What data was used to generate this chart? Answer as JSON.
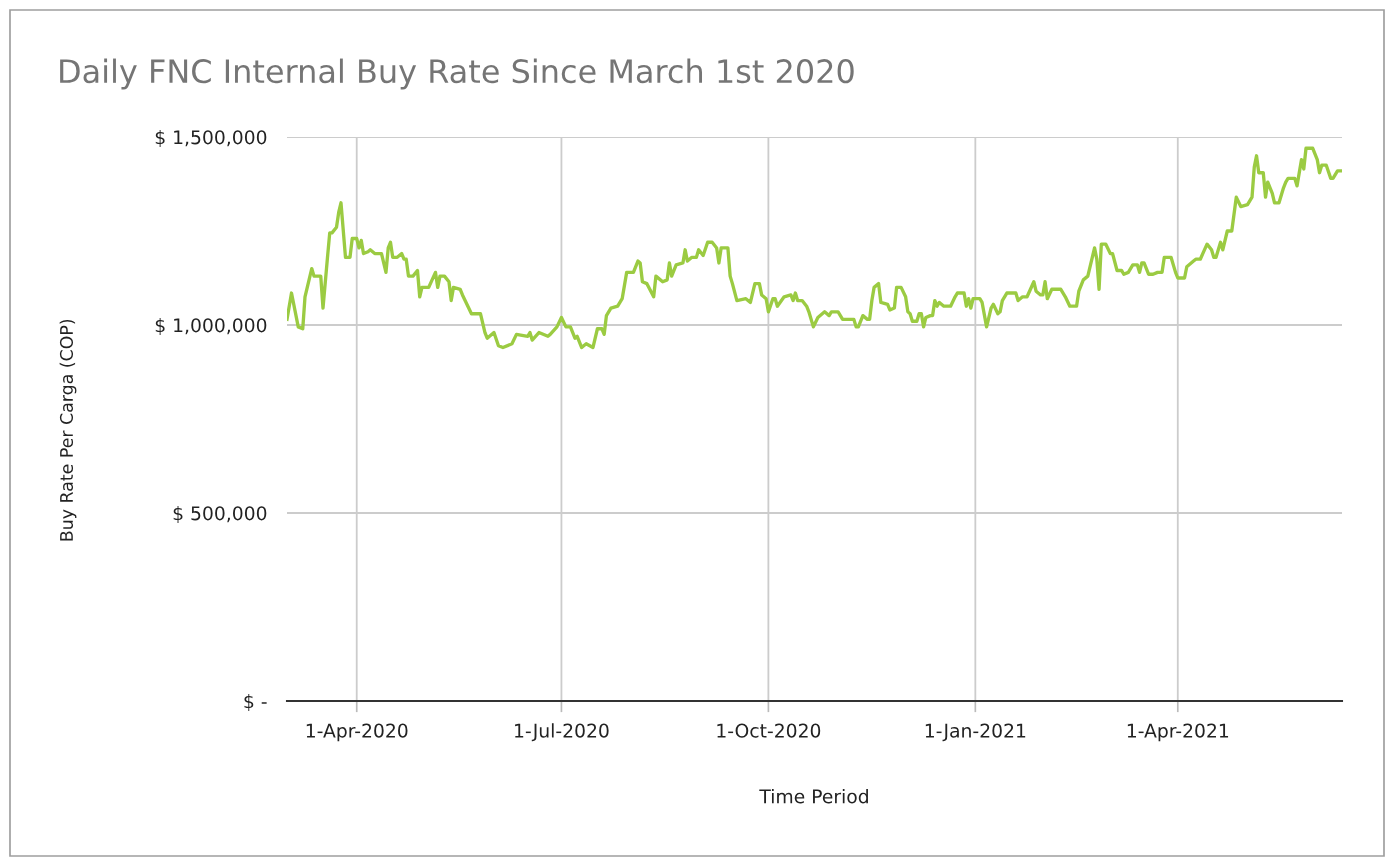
{
  "chart_data": {
    "type": "line",
    "title": "Daily FNC Internal Buy Rate Since March 1st 2020",
    "xlabel": "Time Period",
    "ylabel": "Buy Rate Per Carga (COP)",
    "x": [
      "2020-03-01",
      "2020-03-03",
      "2020-03-06",
      "2020-03-08",
      "2020-03-09",
      "2020-03-12",
      "2020-03-13",
      "2020-03-16",
      "2020-03-17",
      "2020-03-19",
      "2020-03-20",
      "2020-03-21",
      "2020-03-23",
      "2020-03-24",
      "2020-03-25",
      "2020-03-27",
      "2020-03-29",
      "2020-03-30",
      "2020-04-01",
      "2020-04-02",
      "2020-04-03",
      "2020-04-04",
      "2020-04-06",
      "2020-04-07",
      "2020-04-09",
      "2020-04-12",
      "2020-04-14",
      "2020-04-15",
      "2020-04-16",
      "2020-04-17",
      "2020-04-19",
      "2020-04-21",
      "2020-04-22",
      "2020-04-23",
      "2020-04-24",
      "2020-04-26",
      "2020-04-28",
      "2020-04-29",
      "2020-04-30",
      "2020-05-03",
      "2020-05-06",
      "2020-05-07",
      "2020-05-08",
      "2020-05-10",
      "2020-05-12",
      "2020-05-13",
      "2020-05-14",
      "2020-05-17",
      "2020-05-18",
      "2020-05-22",
      "2020-05-26",
      "2020-05-28",
      "2020-05-29",
      "2020-06-01",
      "2020-06-03",
      "2020-06-05",
      "2020-06-09",
      "2020-06-11",
      "2020-06-16",
      "2020-06-17",
      "2020-06-18",
      "2020-06-21",
      "2020-06-25",
      "2020-06-26",
      "2020-06-29",
      "2020-07-01",
      "2020-07-03",
      "2020-07-05",
      "2020-07-07",
      "2020-07-08",
      "2020-07-10",
      "2020-07-12",
      "2020-07-15",
      "2020-07-17",
      "2020-07-19",
      "2020-07-20",
      "2020-07-21",
      "2020-07-23",
      "2020-07-26",
      "2020-07-28",
      "2020-07-30",
      "2020-08-02",
      "2020-08-04",
      "2020-08-05",
      "2020-08-06",
      "2020-08-08",
      "2020-08-11",
      "2020-08-12",
      "2020-08-15",
      "2020-08-17",
      "2020-08-18",
      "2020-08-19",
      "2020-08-21",
      "2020-08-24",
      "2020-08-25",
      "2020-08-26",
      "2020-08-28",
      "2020-08-30",
      "2020-08-31",
      "2020-09-02",
      "2020-09-04",
      "2020-09-06",
      "2020-09-08",
      "2020-09-09",
      "2020-09-10",
      "2020-09-13",
      "2020-09-14",
      "2020-09-15",
      "2020-09-17",
      "2020-09-21",
      "2020-09-23",
      "2020-09-25",
      "2020-09-27",
      "2020-09-28",
      "2020-09-30",
      "2020-10-01",
      "2020-10-03",
      "2020-10-04",
      "2020-10-05",
      "2020-10-08",
      "2020-10-11",
      "2020-10-12",
      "2020-10-13",
      "2020-10-14",
      "2020-10-16",
      "2020-10-18",
      "2020-10-19",
      "2020-10-21",
      "2020-10-23",
      "2020-10-26",
      "2020-10-28",
      "2020-10-29",
      "2020-11-01",
      "2020-11-03",
      "2020-11-05",
      "2020-11-08",
      "2020-11-09",
      "2020-11-10",
      "2020-11-12",
      "2020-11-14",
      "2020-11-15",
      "2020-11-16",
      "2020-11-17",
      "2020-11-19",
      "2020-11-20",
      "2020-11-23",
      "2020-11-24",
      "2020-11-26",
      "2020-11-27",
      "2020-11-29",
      "2020-12-01",
      "2020-12-02",
      "2020-12-03",
      "2020-12-04",
      "2020-12-06",
      "2020-12-07",
      "2020-12-08",
      "2020-12-09",
      "2020-12-10",
      "2020-12-12",
      "2020-12-13",
      "2020-12-14",
      "2020-12-15",
      "2020-12-16",
      "2020-12-18",
      "2020-12-21",
      "2020-12-23",
      "2020-12-24",
      "2020-12-27",
      "2020-12-28",
      "2020-12-29",
      "2020-12-30",
      "2020-12-31",
      "2021-01-03",
      "2021-01-04",
      "2021-01-06",
      "2021-01-08",
      "2021-01-09",
      "2021-01-11",
      "2021-01-12",
      "2021-01-13",
      "2021-01-15",
      "2021-01-19",
      "2021-01-20",
      "2021-01-22",
      "2021-01-24",
      "2021-01-27",
      "2021-01-28",
      "2021-01-30",
      "2021-01-31",
      "2021-02-01",
      "2021-02-02",
      "2021-02-04",
      "2021-02-08",
      "2021-02-10",
      "2021-02-12",
      "2021-02-15",
      "2021-02-16",
      "2021-02-18",
      "2021-02-20",
      "2021-02-23",
      "2021-02-24",
      "2021-02-25",
      "2021-02-26",
      "2021-02-28",
      "2021-03-02",
      "2021-03-03",
      "2021-03-05",
      "2021-03-07",
      "2021-03-08",
      "2021-03-10",
      "2021-03-12",
      "2021-03-14",
      "2021-03-15",
      "2021-03-16",
      "2021-03-17",
      "2021-03-19",
      "2021-03-21",
      "2021-03-23",
      "2021-03-25",
      "2021-03-26",
      "2021-03-29",
      "2021-03-31",
      "2021-04-01",
      "2021-04-04",
      "2021-04-05",
      "2021-04-08",
      "2021-04-09",
      "2021-04-11",
      "2021-04-14",
      "2021-04-16",
      "2021-04-17",
      "2021-04-18",
      "2021-04-20",
      "2021-04-21",
      "2021-04-23",
      "2021-04-25",
      "2021-04-27",
      "2021-04-29",
      "2021-05-02",
      "2021-05-04",
      "2021-05-05",
      "2021-05-06",
      "2021-05-07",
      "2021-05-09",
      "2021-05-10",
      "2021-05-11",
      "2021-05-13",
      "2021-05-14",
      "2021-05-16",
      "2021-05-18",
      "2021-05-19",
      "2021-05-20",
      "2021-05-23",
      "2021-05-24",
      "2021-05-26",
      "2021-05-27",
      "2021-05-28",
      "2021-05-31",
      "2021-06-02",
      "2021-06-03",
      "2021-06-04",
      "2021-06-06",
      "2021-06-08",
      "2021-06-09",
      "2021-06-11",
      "2021-06-13"
    ],
    "series": [
      {
        "color": "#9bcb42",
        "values": [
          1015000,
          1085000,
          995000,
          990000,
          1075000,
          1150000,
          1130000,
          1130000,
          1045000,
          1180000,
          1245000,
          1245000,
          1260000,
          1300000,
          1325000,
          1180000,
          1180000,
          1230000,
          1230000,
          1205000,
          1225000,
          1190000,
          1195000,
          1200000,
          1190000,
          1190000,
          1140000,
          1205000,
          1220000,
          1180000,
          1180000,
          1190000,
          1175000,
          1175000,
          1130000,
          1130000,
          1145000,
          1075000,
          1100000,
          1100000,
          1140000,
          1100000,
          1130000,
          1130000,
          1115000,
          1065000,
          1100000,
          1095000,
          1080000,
          1030000,
          1030000,
          980000,
          965000,
          980000,
          945000,
          940000,
          950000,
          975000,
          970000,
          980000,
          960000,
          980000,
          970000,
          975000,
          995000,
          1020000,
          995000,
          995000,
          965000,
          970000,
          940000,
          950000,
          940000,
          990000,
          990000,
          975000,
          1025000,
          1045000,
          1050000,
          1070000,
          1140000,
          1140000,
          1170000,
          1165000,
          1115000,
          1110000,
          1075000,
          1130000,
          1115000,
          1120000,
          1165000,
          1130000,
          1160000,
          1165000,
          1200000,
          1170000,
          1180000,
          1180000,
          1200000,
          1185000,
          1220000,
          1220000,
          1205000,
          1165000,
          1205000,
          1205000,
          1130000,
          1110000,
          1065000,
          1070000,
          1060000,
          1110000,
          1110000,
          1080000,
          1070000,
          1035000,
          1070000,
          1070000,
          1050000,
          1075000,
          1080000,
          1065000,
          1085000,
          1065000,
          1065000,
          1050000,
          1035000,
          995000,
          1020000,
          1035000,
          1025000,
          1035000,
          1035000,
          1015000,
          1015000,
          1015000,
          995000,
          995000,
          1025000,
          1015000,
          1015000,
          1065000,
          1100000,
          1110000,
          1060000,
          1055000,
          1040000,
          1045000,
          1100000,
          1100000,
          1075000,
          1035000,
          1030000,
          1010000,
          1010000,
          1030000,
          1030000,
          995000,
          1020000,
          1025000,
          1025000,
          1065000,
          1050000,
          1060000,
          1050000,
          1050000,
          1075000,
          1085000,
          1085000,
          1050000,
          1070000,
          1045000,
          1070000,
          1070000,
          1060000,
          995000,
          1045000,
          1055000,
          1030000,
          1035000,
          1065000,
          1085000,
          1085000,
          1065000,
          1075000,
          1075000,
          1115000,
          1090000,
          1080000,
          1080000,
          1115000,
          1070000,
          1095000,
          1095000,
          1075000,
          1050000,
          1050000,
          1090000,
          1120000,
          1130000,
          1205000,
          1175000,
          1095000,
          1215000,
          1215000,
          1190000,
          1190000,
          1145000,
          1145000,
          1135000,
          1140000,
          1160000,
          1160000,
          1140000,
          1165000,
          1165000,
          1135000,
          1135000,
          1140000,
          1140000,
          1180000,
          1180000,
          1140000,
          1125000,
          1125000,
          1155000,
          1170000,
          1175000,
          1175000,
          1215000,
          1200000,
          1180000,
          1180000,
          1220000,
          1200000,
          1250000,
          1250000,
          1340000,
          1315000,
          1320000,
          1340000,
          1420000,
          1450000,
          1405000,
          1405000,
          1340000,
          1380000,
          1350000,
          1325000,
          1325000,
          1365000,
          1380000,
          1390000,
          1390000,
          1370000,
          1440000,
          1415000,
          1470000,
          1470000,
          1440000,
          1405000,
          1425000,
          1425000,
          1390000,
          1390000,
          1410000,
          1410000
        ]
      }
    ],
    "xlim": [
      "2020-03-01",
      "2021-06-13"
    ],
    "xticks": [
      {
        "value": "2020-04-01",
        "label": "1-Apr-2020"
      },
      {
        "value": "2020-07-01",
        "label": "1-Jul-2020"
      },
      {
        "value": "2020-10-01",
        "label": "1-Oct-2020"
      },
      {
        "value": "2021-01-01",
        "label": "1-Jan-2021"
      },
      {
        "value": "2021-04-01",
        "label": "1-Apr-2021"
      }
    ],
    "ylim": [
      0,
      1500000
    ],
    "yticks": [
      {
        "value": 0,
        "label": "$ -"
      },
      {
        "value": 500000,
        "label": "$ 500,000"
      },
      {
        "value": 1000000,
        "label": "$ 1,000,000"
      },
      {
        "value": 1500000,
        "label": "$ 1,500,000"
      }
    ],
    "grid": true,
    "line_style": "solid"
  }
}
